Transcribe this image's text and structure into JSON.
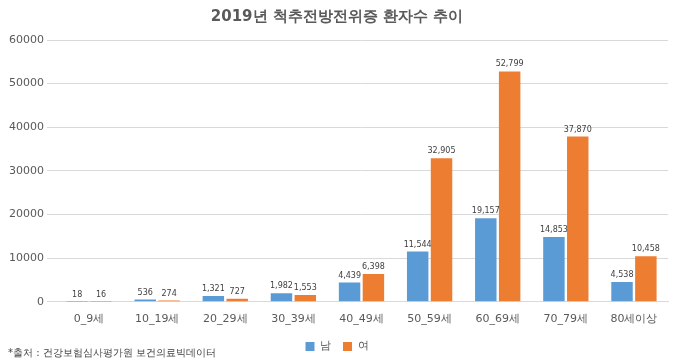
{
  "chart_data": {
    "type": "bar",
    "title": "2019년 척추전방전위증 환자수 추이",
    "annotations": [
      "*출처 : 건강보험심사평가원 보건의료빅데이터"
    ],
    "categories": [
      "0_9세",
      "10_19세",
      "20_29세",
      "30_39세",
      "40_49세",
      "50_59세",
      "60_69세",
      "70_79세",
      "80세이상"
    ],
    "series": [
      {
        "name": "남",
        "color": "#5b9bd5",
        "values": [
          18,
          536,
          1321,
          1982,
          4439,
          11544,
          19157,
          14853,
          4538
        ],
        "value_labels": [
          "18",
          "536",
          "1,321",
          "1,982",
          "4,439",
          "11,544",
          "19,157",
          "14,853",
          "4,538"
        ]
      },
      {
        "name": "여",
        "color": "#ed7d31",
        "values": [
          16,
          274,
          727,
          1553,
          6398,
          32905,
          52799,
          37870,
          10458
        ],
        "value_labels": [
          "16",
          "274",
          "727",
          "1,553",
          "6,398",
          "32,905",
          "52,799",
          "37,870",
          "10,458"
        ]
      }
    ],
    "ylim": [
      0,
      60000
    ],
    "yticks": [
      0,
      10000,
      20000,
      30000,
      40000,
      50000,
      60000
    ],
    "grid": true,
    "legend": "bottom",
    "data_labels": true
  }
}
